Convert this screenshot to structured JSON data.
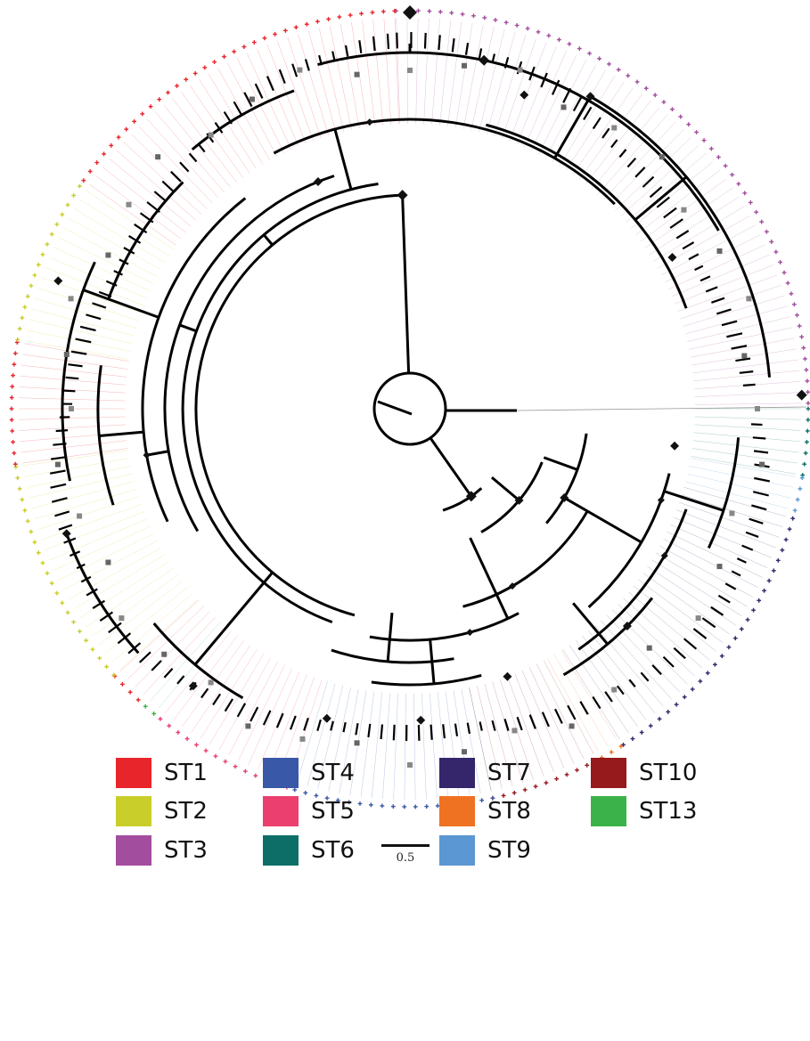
{
  "scale_bar": {
    "label": "0.5"
  },
  "legend": [
    {
      "key": "ST1",
      "label": "ST1",
      "color": "#e8252b"
    },
    {
      "key": "ST2",
      "label": "ST2",
      "color": "#c9ce2a"
    },
    {
      "key": "ST3",
      "label": "ST3",
      "color": "#a34d9e"
    },
    {
      "key": "ST4",
      "label": "ST4",
      "color": "#3a58a8"
    },
    {
      "key": "ST5",
      "label": "ST5",
      "color": "#ea3f6f"
    },
    {
      "key": "ST6",
      "label": "ST6",
      "color": "#0d6e68"
    },
    {
      "key": "ST7",
      "label": "ST7",
      "color": "#35266b"
    },
    {
      "key": "ST8",
      "label": "ST8",
      "color": "#ef7122"
    },
    {
      "key": "ST9",
      "label": "ST9",
      "color": "#5b97d2"
    },
    {
      "key": "ST10",
      "label": "ST10",
      "color": "#96191b"
    },
    {
      "key": "ST13",
      "label": "ST13",
      "color": "#3cb34a"
    }
  ],
  "tip_annotation": {
    "colors": [
      "ST3",
      "ST6",
      "ST9",
      "ST7",
      "ST8",
      "ST10",
      "ST4",
      "ST5",
      "ST13",
      "ST1",
      "ST2",
      "ST1",
      "ST2",
      "ST1"
    ]
  },
  "icons": {
    "tip_marker": "plus-marker-icon",
    "node_marker": "diamond-node-icon"
  }
}
